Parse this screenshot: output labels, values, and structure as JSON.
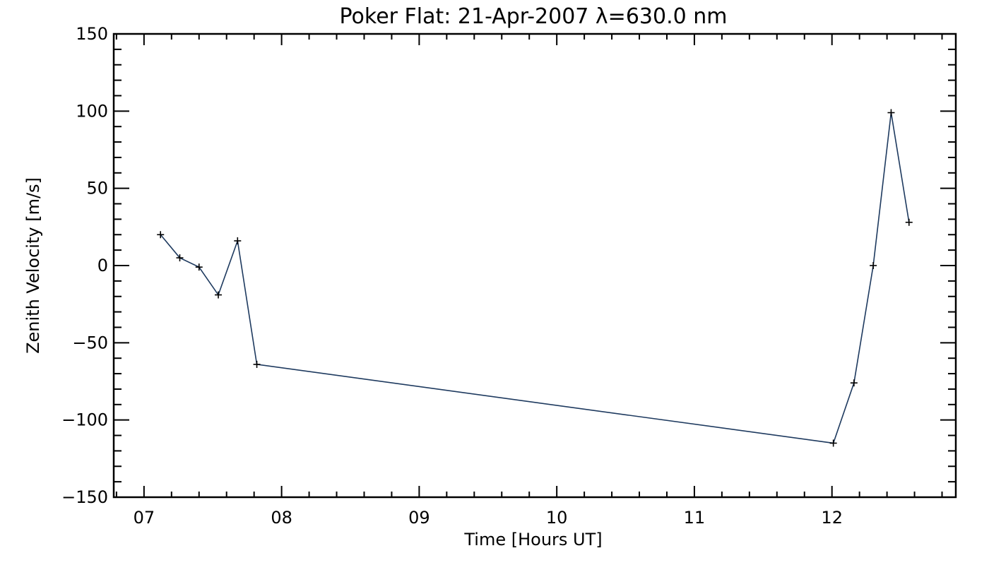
{
  "chart_data": {
    "type": "line",
    "title": "Poker Flat: 21-Apr-2007 λ=630.0 nm",
    "xlabel": "Time [Hours UT]",
    "ylabel": "Zenith Velocity [m/s]",
    "xlim": [
      6.78,
      12.9
    ],
    "ylim": [
      -150,
      150
    ],
    "x_ticks": [
      7,
      8,
      9,
      10,
      11,
      12
    ],
    "x_tick_labels": [
      "07",
      "08",
      "09",
      "10",
      "11",
      "12"
    ],
    "y_ticks": [
      150,
      100,
      50,
      0,
      -50,
      -100,
      -150
    ],
    "y_tick_labels": [
      "150",
      "100",
      "50",
      "0",
      "−50",
      "−100",
      "−150"
    ],
    "grid": false,
    "marker": "plus",
    "line_color": "#1e3a5f",
    "series": [
      {
        "x": [
          7.12,
          7.26,
          7.4,
          7.54,
          7.68,
          7.82,
          12.01,
          12.16,
          12.3,
          12.43,
          12.56
        ],
        "y": [
          20,
          5,
          -1,
          -19,
          16,
          -64,
          -115,
          -76,
          0,
          99,
          28
        ]
      }
    ]
  }
}
